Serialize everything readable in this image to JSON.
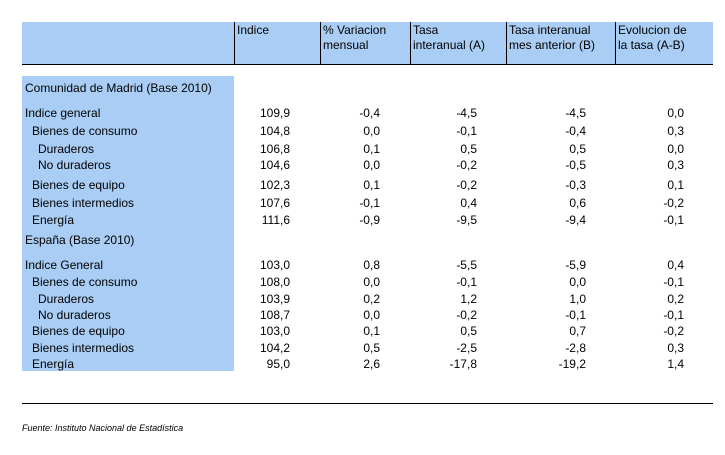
{
  "headers": [
    "",
    "Indice",
    "% Variacion\nmensual",
    "Tasa\ninteranual (A)",
    "Tasa interanual\nmes anterior (B)",
    "Evolucion de\nla tasa (A-B)"
  ],
  "sections": [
    {
      "title": "Comunidad de Madrid (Base 2010)",
      "rows": [
        {
          "label": "Indice general",
          "values": [
            "109,9",
            "-0,4",
            "-4,5",
            "-4,5",
            "0,0"
          ]
        },
        {
          "label": "Bienes de consumo",
          "values": [
            "104,8",
            "0,0",
            "-0,1",
            "-0,4",
            "0,3"
          ]
        },
        {
          "label": "Duraderos",
          "values": [
            "106,8",
            "0,1",
            "0,5",
            "0,5",
            "0,0"
          ]
        },
        {
          "label": "No duraderos",
          "values": [
            "104,6",
            "0,0",
            "-0,2",
            "-0,5",
            "0,3"
          ]
        },
        {
          "label": "Bienes de equipo",
          "values": [
            "102,3",
            "0,1",
            "-0,2",
            "-0,3",
            "0,1"
          ]
        },
        {
          "label": "Bienes intermedios",
          "values": [
            "107,6",
            "-0,1",
            "0,4",
            "0,6",
            "-0,2"
          ]
        },
        {
          "label": "Energía",
          "values": [
            "111,6",
            "-0,9",
            "-9,5",
            "-9,4",
            "-0,1"
          ]
        }
      ]
    },
    {
      "title": "España (Base 2010)",
      "rows": [
        {
          "label": "Indice General",
          "values": [
            "103,0",
            "0,8",
            "-5,5",
            "-5,9",
            "0,4"
          ]
        },
        {
          "label": "Bienes de consumo",
          "values": [
            "108,0",
            "0,0",
            "-0,1",
            "0,0",
            "-0,1"
          ]
        },
        {
          "label": "Duraderos",
          "values": [
            "103,9",
            "0,2",
            "1,2",
            "1,0",
            "0,2"
          ]
        },
        {
          "label": "No duraderos",
          "values": [
            "108,7",
            "0,0",
            "-0,2",
            "-0,1",
            "-0,1"
          ]
        },
        {
          "label": "Bienes de equipo",
          "values": [
            "103,0",
            "0,1",
            "0,5",
            "0,7",
            "-0,2"
          ]
        },
        {
          "label": "Bienes intermedios",
          "values": [
            "104,2",
            "0,5",
            "-2,5",
            "-2,8",
            "0,3"
          ]
        },
        {
          "label": "Energía",
          "values": [
            "95,0",
            "2,6",
            "-17,8",
            "-19,2",
            "1,4"
          ]
        }
      ]
    }
  ],
  "source": "Fuente: Instituto Nacional de Estadística",
  "colors": {
    "label_bg": "#a9cdf4",
    "header_bg": "#a9cdf4",
    "rule": "#000000"
  }
}
